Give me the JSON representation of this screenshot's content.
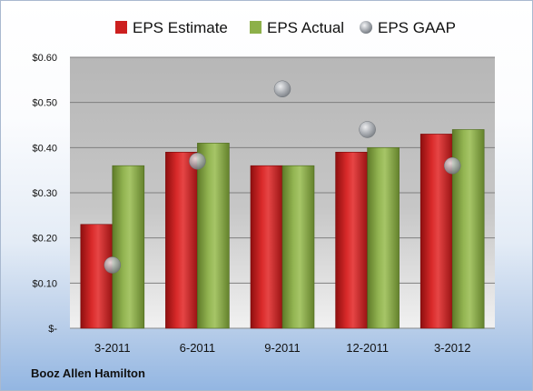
{
  "company": "Booz Allen Hamilton",
  "colors": {
    "estimate": "#cc1f1f",
    "actual": "#8db04a",
    "gaap": "#a6aab0"
  },
  "chart_data": {
    "type": "bar",
    "categories": [
      "3-2011",
      "6-2011",
      "9-2011",
      "12-2011",
      "3-2012"
    ],
    "series": [
      {
        "name": "EPS Estimate",
        "kind": "bar",
        "values": [
          0.23,
          0.39,
          0.36,
          0.39,
          0.43
        ]
      },
      {
        "name": "EPS Actual",
        "kind": "bar",
        "values": [
          0.36,
          0.41,
          0.36,
          0.4,
          0.44
        ]
      },
      {
        "name": "EPS GAAP",
        "kind": "scatter",
        "values": [
          0.14,
          0.37,
          0.53,
          0.44,
          0.36
        ]
      }
    ],
    "yticks": [
      {
        "value": 0.6,
        "label": "$0.60"
      },
      {
        "value": 0.5,
        "label": "$0.50"
      },
      {
        "value": 0.4,
        "label": "$0.40"
      },
      {
        "value": 0.3,
        "label": "$0.30"
      },
      {
        "value": 0.2,
        "label": "$0.20"
      },
      {
        "value": 0.1,
        "label": "$0.10"
      },
      {
        "value": 0,
        "label": "$-"
      }
    ],
    "ylim": [
      0,
      0.6
    ],
    "grid": true,
    "legend_position": "top"
  }
}
